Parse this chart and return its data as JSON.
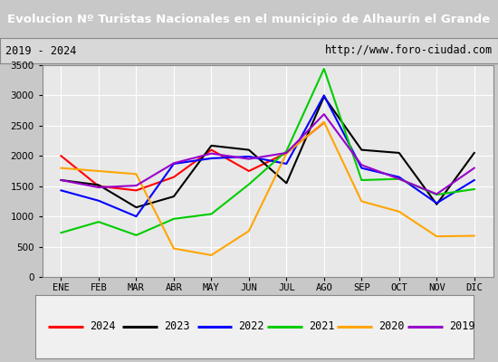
{
  "title": "Evolucion Nº Turistas Nacionales en el municipio de Alhaurín el Grande",
  "subtitle_left": "2019 - 2024",
  "subtitle_right": "http://www.foro-ciudad.com",
  "months": [
    "ENE",
    "FEB",
    "MAR",
    "ABR",
    "MAY",
    "JUN",
    "JUL",
    "AGO",
    "SEP",
    "OCT",
    "NOV",
    "DIC"
  ],
  "series": {
    "2024": [
      2000,
      1500,
      1430,
      1650,
      2100,
      1750,
      2050,
      2550,
      null,
      null,
      null,
      null
    ],
    "2023": [
      1600,
      1520,
      1150,
      1330,
      2170,
      2100,
      1550,
      2980,
      2100,
      2050,
      1200,
      2050
    ],
    "2022": [
      1430,
      1260,
      1000,
      1870,
      1960,
      1990,
      1870,
      3000,
      1800,
      1650,
      1220,
      1600
    ],
    "2021": [
      730,
      910,
      690,
      960,
      1040,
      1530,
      2080,
      3440,
      1600,
      1620,
      1360,
      1450
    ],
    "2020": [
      1800,
      1750,
      1700,
      470,
      360,
      760,
      2040,
      2560,
      1250,
      1080,
      670,
      680
    ],
    "2019": [
      1600,
      1480,
      1510,
      1880,
      2040,
      1950,
      2050,
      2690,
      1850,
      1620,
      1370,
      1800
    ]
  },
  "colors": {
    "2024": "#ff0000",
    "2023": "#000000",
    "2022": "#0000ff",
    "2021": "#00cc00",
    "2020": "#ffa500",
    "2019": "#9900cc"
  },
  "ylim": [
    0,
    3500
  ],
  "yticks": [
    0,
    500,
    1000,
    1500,
    2000,
    2500,
    3000,
    3500
  ],
  "title_bg": "#3a6abf",
  "title_color": "#ffffff",
  "plot_bg": "#e8e8e8",
  "grid_color": "#ffffff",
  "outer_bg": "#c8c8c8",
  "legend_order": [
    "2024",
    "2023",
    "2022",
    "2021",
    "2020",
    "2019"
  ]
}
